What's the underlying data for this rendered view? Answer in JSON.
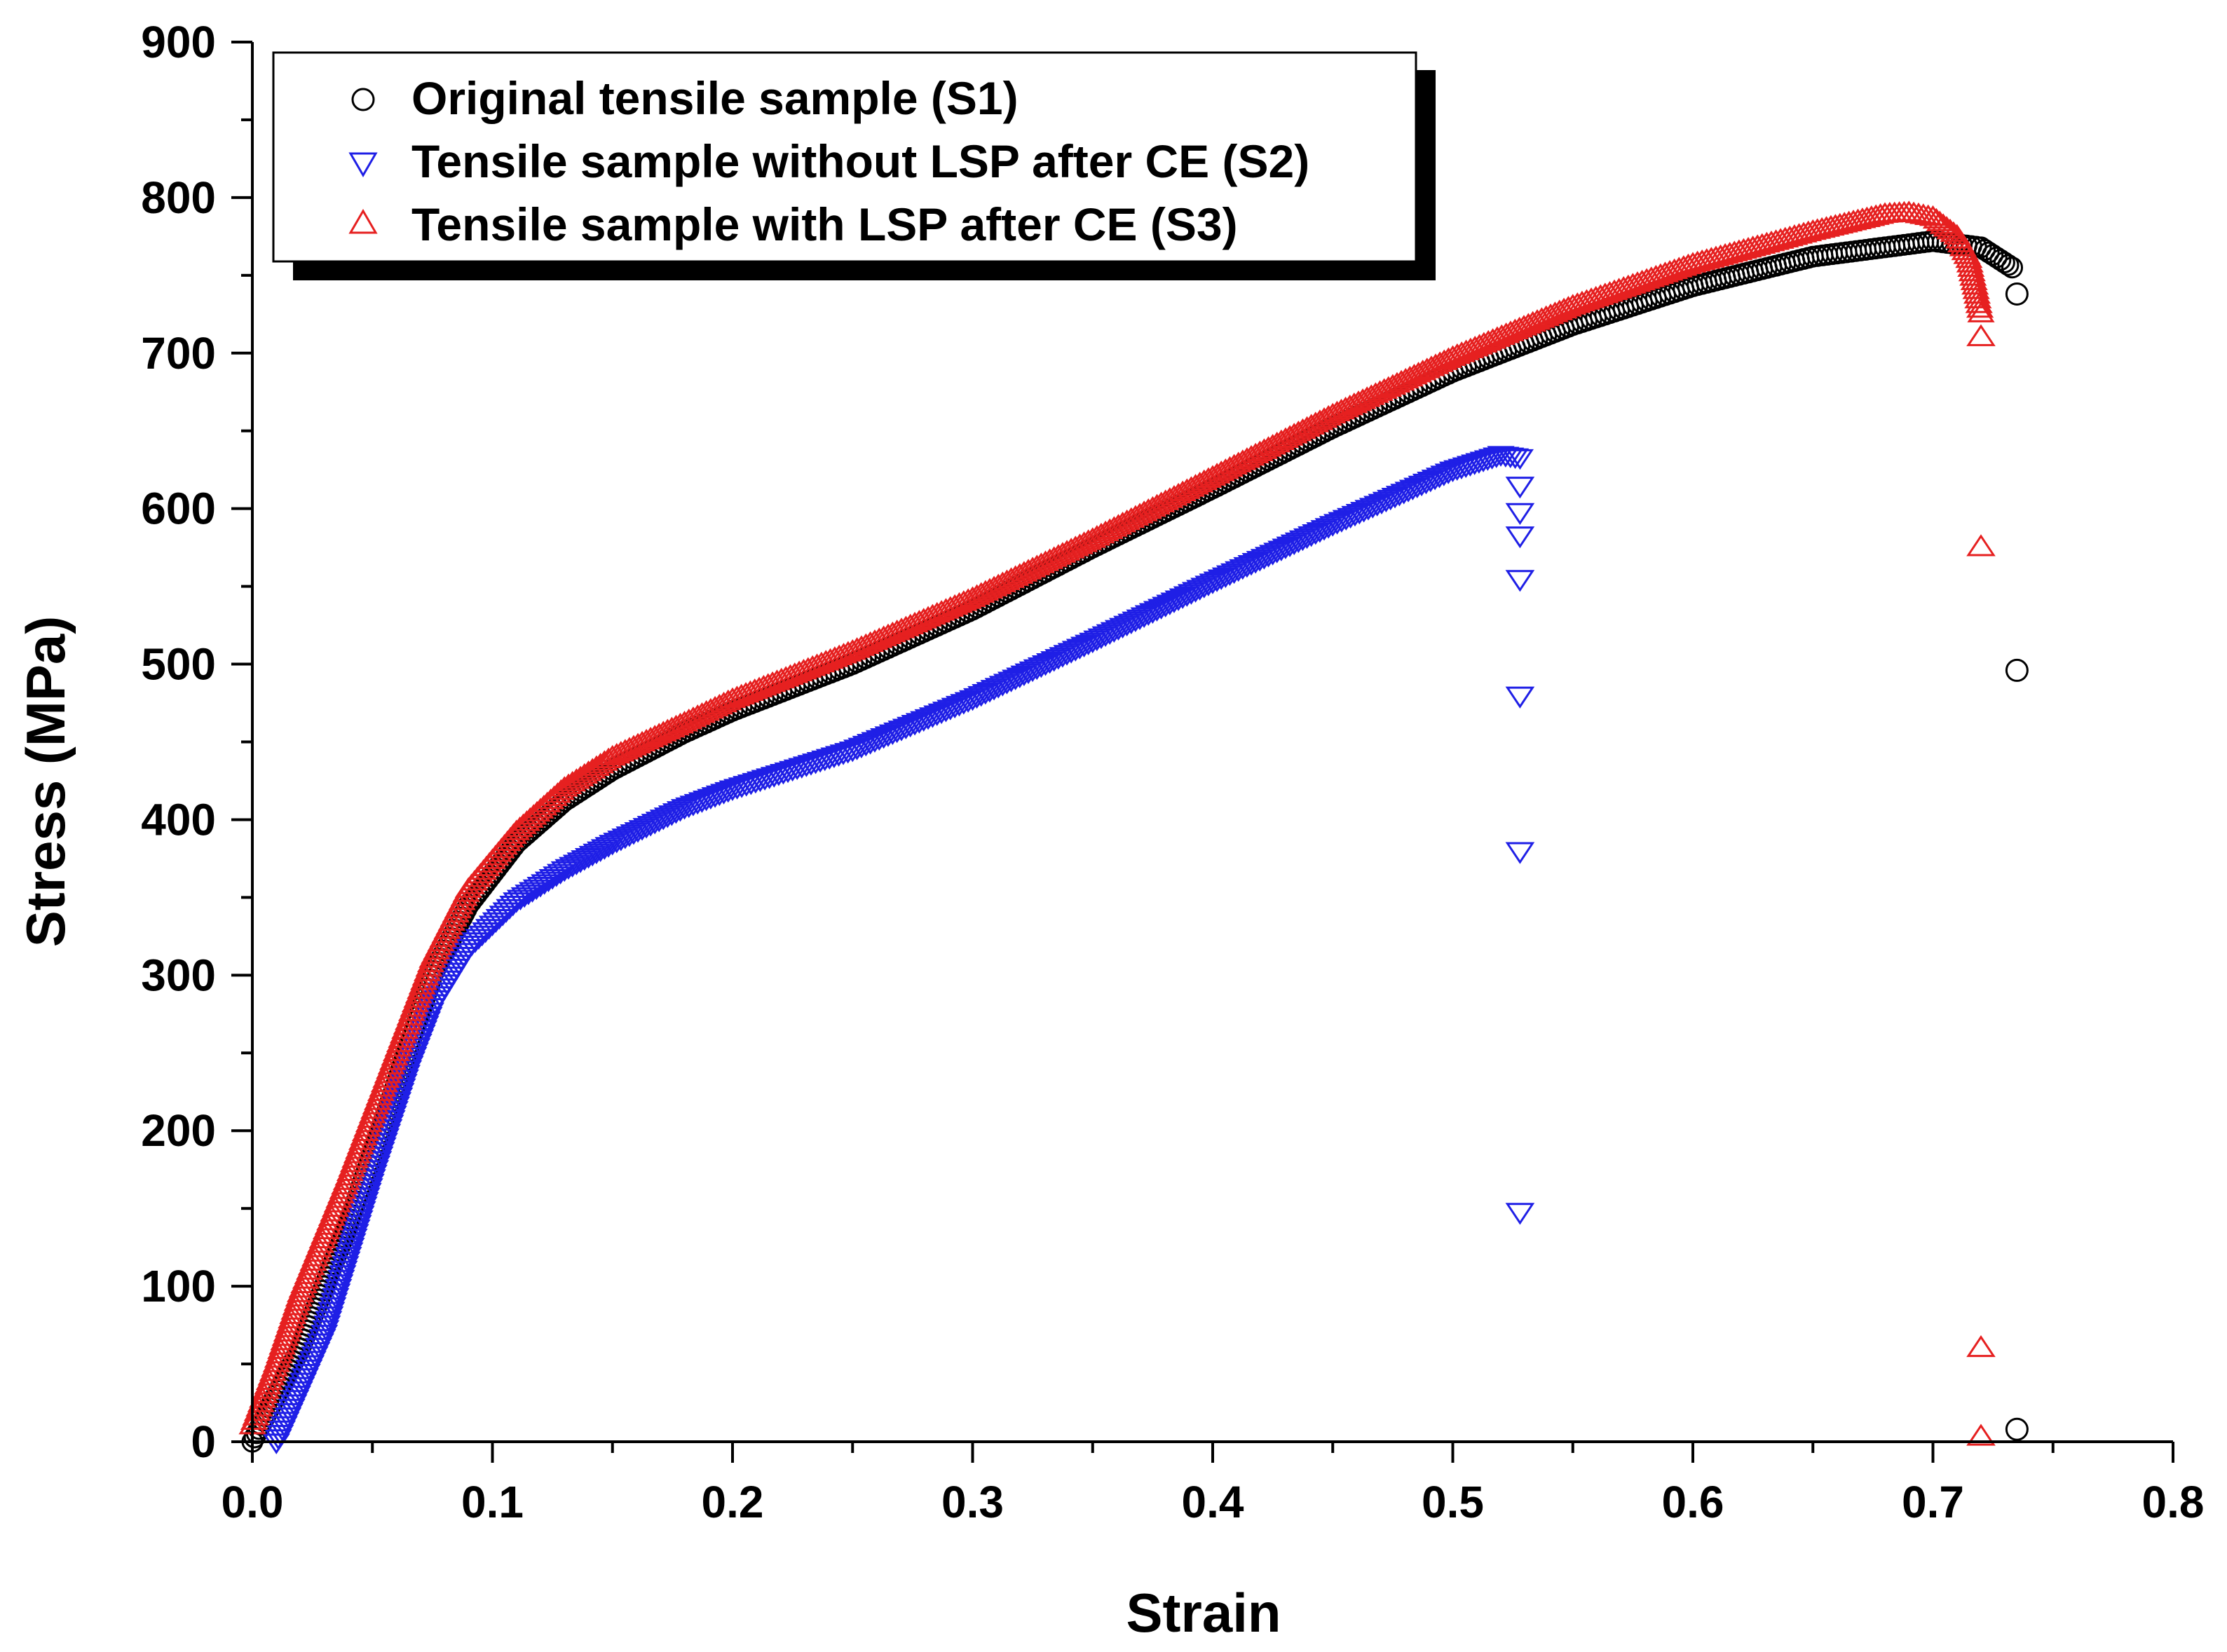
{
  "chart_data": {
    "type": "scatter",
    "title": "",
    "xlabel": "Strain",
    "ylabel": "Stress (MPa)",
    "xlim": [
      0.0,
      0.8
    ],
    "ylim": [
      0,
      900
    ],
    "xticks": [
      "0.0",
      "0.1",
      "0.2",
      "0.3",
      "0.4",
      "0.5",
      "0.6",
      "0.7",
      "0.8"
    ],
    "yticks": [
      "0",
      "100",
      "200",
      "300",
      "400",
      "500",
      "600",
      "700",
      "800",
      "900"
    ],
    "grid": false,
    "legend_position": "top-left",
    "series": [
      {
        "name": "Original tensile sample (S1)",
        "marker": "circle",
        "color": "#000000",
        "curve": [
          [
            0.0,
            0
          ],
          [
            0.02,
            60
          ],
          [
            0.04,
            140
          ],
          [
            0.06,
            230
          ],
          [
            0.075,
            300
          ],
          [
            0.09,
            345
          ],
          [
            0.11,
            385
          ],
          [
            0.13,
            412
          ],
          [
            0.15,
            432
          ],
          [
            0.18,
            456
          ],
          [
            0.2,
            470
          ],
          [
            0.25,
            500
          ],
          [
            0.3,
            535
          ],
          [
            0.35,
            575
          ],
          [
            0.4,
            613
          ],
          [
            0.45,
            652
          ],
          [
            0.5,
            688
          ],
          [
            0.55,
            718
          ],
          [
            0.6,
            743
          ],
          [
            0.65,
            762
          ],
          [
            0.7,
            772
          ],
          [
            0.72,
            768
          ],
          [
            0.733,
            755
          ]
        ],
        "fracture_points": [
          [
            0.735,
            738
          ],
          [
            0.735,
            496
          ],
          [
            0.735,
            8
          ]
        ]
      },
      {
        "name": "Tensile sample without LSP after CE (S2)",
        "marker": "triangle-down",
        "color": "#1f1fe6",
        "curve": [
          [
            0.01,
            0
          ],
          [
            0.03,
            70
          ],
          [
            0.05,
            170
          ],
          [
            0.065,
            240
          ],
          [
            0.075,
            280
          ],
          [
            0.09,
            318
          ],
          [
            0.11,
            348
          ],
          [
            0.13,
            368
          ],
          [
            0.15,
            385
          ],
          [
            0.18,
            408
          ],
          [
            0.2,
            420
          ],
          [
            0.25,
            445
          ],
          [
            0.3,
            478
          ],
          [
            0.35,
            515
          ],
          [
            0.4,
            553
          ],
          [
            0.45,
            590
          ],
          [
            0.5,
            625
          ],
          [
            0.52,
            635
          ],
          [
            0.528,
            633
          ]
        ],
        "fracture_points": [
          [
            0.528,
            615
          ],
          [
            0.528,
            598
          ],
          [
            0.528,
            583
          ],
          [
            0.528,
            555
          ],
          [
            0.528,
            480
          ],
          [
            0.528,
            380
          ],
          [
            0.528,
            148
          ]
        ]
      },
      {
        "name": "Tensile sample with LSP after CE (S3)",
        "marker": "triangle-up",
        "color": "#e62020",
        "curve": [
          [
            0.0,
            10
          ],
          [
            0.01,
            50
          ],
          [
            0.02,
            95
          ],
          [
            0.04,
            170
          ],
          [
            0.06,
            250
          ],
          [
            0.075,
            310
          ],
          [
            0.09,
            355
          ],
          [
            0.11,
            392
          ],
          [
            0.13,
            420
          ],
          [
            0.15,
            440
          ],
          [
            0.18,
            462
          ],
          [
            0.2,
            477
          ],
          [
            0.25,
            508
          ],
          [
            0.3,
            542
          ],
          [
            0.35,
            580
          ],
          [
            0.4,
            620
          ],
          [
            0.45,
            660
          ],
          [
            0.5,
            697
          ],
          [
            0.55,
            730
          ],
          [
            0.6,
            757
          ],
          [
            0.65,
            778
          ],
          [
            0.68,
            789
          ],
          [
            0.69,
            790
          ],
          [
            0.7,
            787
          ],
          [
            0.71,
            775
          ],
          [
            0.715,
            760
          ],
          [
            0.718,
            740
          ],
          [
            0.72,
            725
          ]
        ],
        "fracture_points": [
          [
            0.72,
            710
          ],
          [
            0.72,
            575
          ],
          [
            0.72,
            60
          ],
          [
            0.72,
            3
          ]
        ]
      }
    ]
  }
}
